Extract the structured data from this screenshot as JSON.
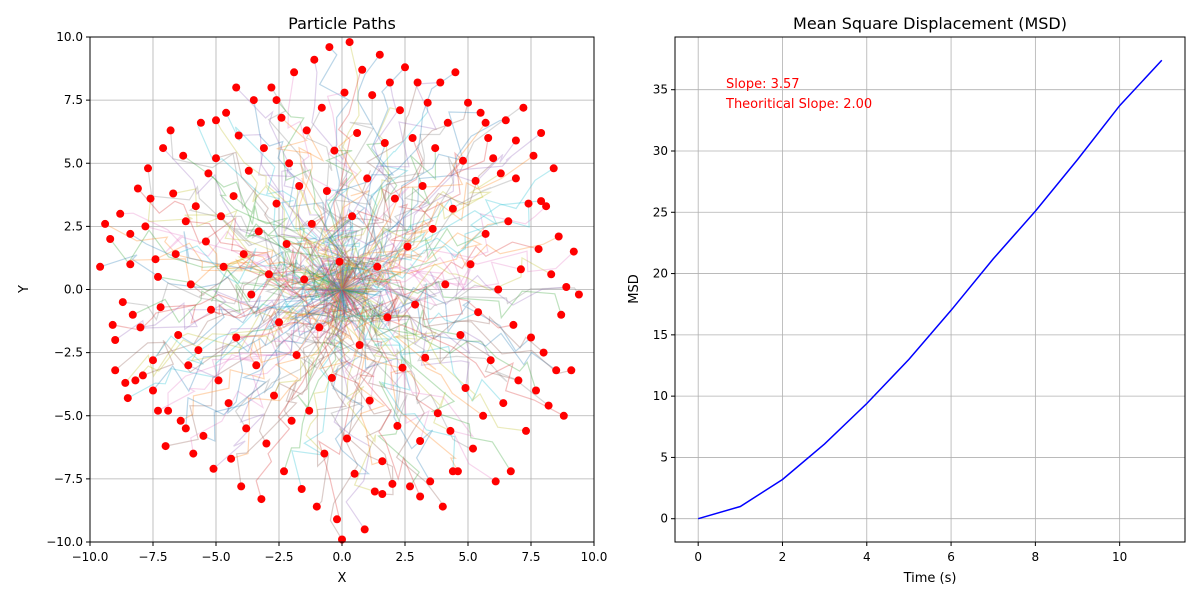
{
  "chart_data": [
    {
      "type": "scatter",
      "title": "Particle Paths",
      "xlabel": "X",
      "ylabel": "Y",
      "xlim": [
        -10,
        10
      ],
      "ylim": [
        -10,
        10
      ],
      "x_ticks": [
        "−10.0",
        "−7.5",
        "−5.0",
        "−2.5",
        "0.0",
        "2.5",
        "5.0",
        "7.5",
        "10.0"
      ],
      "x_tick_values": [
        -10,
        -7.5,
        -5,
        -2.5,
        0,
        2.5,
        5,
        7.5,
        10
      ],
      "y_ticks": [
        "−10.0",
        "−7.5",
        "−5.0",
        "−2.5",
        "0.0",
        "2.5",
        "5.0",
        "7.5",
        "10.0"
      ],
      "y_tick_values": [
        -10,
        -7.5,
        -5,
        -2.5,
        0,
        2.5,
        5,
        7.5,
        10
      ],
      "grid": true,
      "point_color": "#ff0000",
      "path_colors": [
        "#1f77b4",
        "#ff7f0e",
        "#2ca02c",
        "#d62728",
        "#9467bd",
        "#8c564b",
        "#e377c2",
        "#7f7f7f",
        "#bcbd22",
        "#17becf"
      ],
      "paths_start": [
        0,
        0
      ],
      "endpoints": [
        [
          -9.6,
          0.9
        ],
        [
          -9.4,
          2.6
        ],
        [
          -9.2,
          2.0
        ],
        [
          -9.1,
          -1.4
        ],
        [
          -9.0,
          -2.0
        ],
        [
          -9.0,
          -3.2
        ],
        [
          -8.8,
          3.0
        ],
        [
          -8.7,
          -0.5
        ],
        [
          -8.6,
          -3.7
        ],
        [
          -8.5,
          -4.3
        ],
        [
          -8.4,
          2.2
        ],
        [
          -8.4,
          1.0
        ],
        [
          -8.3,
          -1.0
        ],
        [
          -8.1,
          4.0
        ],
        [
          -8.0,
          -1.5
        ],
        [
          -7.9,
          -3.4
        ],
        [
          -7.8,
          2.5
        ],
        [
          -7.7,
          4.8
        ],
        [
          -7.6,
          3.6
        ],
        [
          -7.5,
          -2.8
        ],
        [
          -7.5,
          -4.0
        ],
        [
          -7.4,
          1.2
        ],
        [
          -7.3,
          0.5
        ],
        [
          -7.2,
          -0.7
        ],
        [
          -7.1,
          5.6
        ],
        [
          -7.0,
          -6.2
        ],
        [
          -6.9,
          -4.8
        ],
        [
          -6.8,
          6.3
        ],
        [
          -6.7,
          3.8
        ],
        [
          -6.6,
          1.4
        ],
        [
          -6.5,
          -1.8
        ],
        [
          -6.4,
          -5.2
        ],
        [
          -6.3,
          5.3
        ],
        [
          -6.2,
          2.7
        ],
        [
          -6.1,
          -3.0
        ],
        [
          -6.0,
          0.2
        ],
        [
          -5.9,
          -6.5
        ],
        [
          -5.8,
          3.3
        ],
        [
          -5.7,
          -2.4
        ],
        [
          -5.6,
          6.6
        ],
        [
          -5.5,
          -5.8
        ],
        [
          -5.4,
          1.9
        ],
        [
          -5.3,
          4.6
        ],
        [
          -5.2,
          -0.8
        ],
        [
          -5.1,
          -7.1
        ],
        [
          -5.0,
          5.2
        ],
        [
          -4.9,
          -3.6
        ],
        [
          -4.8,
          2.9
        ],
        [
          -4.7,
          0.9
        ],
        [
          -4.6,
          7.0
        ],
        [
          -4.5,
          -4.5
        ],
        [
          -4.4,
          -6.7
        ],
        [
          -4.3,
          3.7
        ],
        [
          -4.2,
          -1.9
        ],
        [
          -4.1,
          6.1
        ],
        [
          -4.0,
          -7.8
        ],
        [
          -3.9,
          1.4
        ],
        [
          -3.8,
          -5.5
        ],
        [
          -3.7,
          4.7
        ],
        [
          -3.6,
          -0.2
        ],
        [
          -3.5,
          7.5
        ],
        [
          -3.4,
          -3.0
        ],
        [
          -3.3,
          2.3
        ],
        [
          -3.2,
          -8.3
        ],
        [
          -3.1,
          5.6
        ],
        [
          -3.0,
          -6.1
        ],
        [
          -2.9,
          0.6
        ],
        [
          -2.8,
          8.0
        ],
        [
          -2.7,
          -4.2
        ],
        [
          -2.6,
          3.4
        ],
        [
          -2.5,
          -1.3
        ],
        [
          -2.4,
          6.8
        ],
        [
          -2.3,
          -7.2
        ],
        [
          -2.2,
          1.8
        ],
        [
          -2.1,
          5.0
        ],
        [
          -2.0,
          -5.2
        ],
        [
          -1.9,
          8.6
        ],
        [
          -1.8,
          -2.6
        ],
        [
          -1.7,
          4.1
        ],
        [
          -1.6,
          -7.9
        ],
        [
          -1.5,
          0.4
        ],
        [
          -1.4,
          6.3
        ],
        [
          -1.3,
          -4.8
        ],
        [
          -1.2,
          2.6
        ],
        [
          -1.1,
          9.1
        ],
        [
          -1.0,
          -8.6
        ],
        [
          -0.9,
          -1.5
        ],
        [
          -0.8,
          7.2
        ],
        [
          -0.7,
          -6.5
        ],
        [
          -0.6,
          3.9
        ],
        [
          -0.5,
          9.6
        ],
        [
          -0.4,
          -3.5
        ],
        [
          -0.3,
          5.5
        ],
        [
          -0.2,
          -9.1
        ],
        [
          -0.1,
          1.1
        ],
        [
          0.0,
          -9.9
        ],
        [
          0.1,
          7.8
        ],
        [
          0.2,
          -5.9
        ],
        [
          0.3,
          9.8
        ],
        [
          0.4,
          2.9
        ],
        [
          0.5,
          -7.3
        ],
        [
          0.6,
          6.2
        ],
        [
          0.7,
          -2.2
        ],
        [
          0.8,
          8.7
        ],
        [
          0.9,
          -9.5
        ],
        [
          1.0,
          4.4
        ],
        [
          1.1,
          -4.4
        ],
        [
          1.2,
          7.7
        ],
        [
          1.3,
          -8.0
        ],
        [
          1.4,
          0.9
        ],
        [
          1.5,
          9.3
        ],
        [
          1.6,
          -6.8
        ],
        [
          1.7,
          5.8
        ],
        [
          1.8,
          -1.1
        ],
        [
          1.9,
          8.2
        ],
        [
          2.0,
          -7.7
        ],
        [
          2.1,
          3.6
        ],
        [
          2.2,
          -5.4
        ],
        [
          2.3,
          7.1
        ],
        [
          2.4,
          -3.1
        ],
        [
          2.5,
          8.8
        ],
        [
          2.6,
          1.7
        ],
        [
          2.7,
          -7.8
        ],
        [
          2.8,
          6.0
        ],
        [
          2.9,
          -0.6
        ],
        [
          3.0,
          8.2
        ],
        [
          3.1,
          -6.0
        ],
        [
          3.2,
          4.1
        ],
        [
          3.3,
          -2.7
        ],
        [
          3.4,
          7.4
        ],
        [
          3.5,
          -7.6
        ],
        [
          3.6,
          2.4
        ],
        [
          3.7,
          5.6
        ],
        [
          3.8,
          -4.9
        ],
        [
          3.9,
          8.2
        ],
        [
          4.0,
          -8.6
        ],
        [
          4.1,
          0.2
        ],
        [
          4.2,
          6.6
        ],
        [
          4.3,
          -5.6
        ],
        [
          4.4,
          3.2
        ],
        [
          4.5,
          8.6
        ],
        [
          4.6,
          -7.2
        ],
        [
          4.7,
          -1.8
        ],
        [
          4.8,
          5.1
        ],
        [
          4.9,
          -3.9
        ],
        [
          5.0,
          7.4
        ],
        [
          5.1,
          1.0
        ],
        [
          5.2,
          -6.3
        ],
        [
          5.3,
          4.3
        ],
        [
          5.4,
          -0.9
        ],
        [
          5.5,
          7.0
        ],
        [
          5.6,
          -5.0
        ],
        [
          5.7,
          2.2
        ],
        [
          5.8,
          6.0
        ],
        [
          5.9,
          -2.8
        ],
        [
          6.0,
          5.2
        ],
        [
          6.1,
          -7.6
        ],
        [
          6.2,
          0.0
        ],
        [
          6.3,
          4.6
        ],
        [
          6.4,
          -4.5
        ],
        [
          6.5,
          6.7
        ],
        [
          6.6,
          2.7
        ],
        [
          6.7,
          -7.2
        ],
        [
          6.8,
          -1.4
        ],
        [
          6.9,
          5.9
        ],
        [
          7.0,
          -3.6
        ],
        [
          7.1,
          0.8
        ],
        [
          7.2,
          7.2
        ],
        [
          7.3,
          -5.6
        ],
        [
          7.4,
          3.4
        ],
        [
          7.5,
          -1.9
        ],
        [
          7.6,
          5.3
        ],
        [
          7.7,
          -4.0
        ],
        [
          7.8,
          1.6
        ],
        [
          7.9,
          6.2
        ],
        [
          8.0,
          -2.5
        ],
        [
          8.1,
          3.3
        ],
        [
          8.2,
          -4.6
        ],
        [
          8.3,
          0.6
        ],
        [
          8.4,
          4.8
        ],
        [
          8.5,
          -3.2
        ],
        [
          8.6,
          2.1
        ],
        [
          8.7,
          -1.0
        ],
        [
          8.8,
          -5.0
        ],
        [
          8.9,
          0.1
        ],
        [
          9.1,
          -3.2
        ],
        [
          9.2,
          1.5
        ],
        [
          9.4,
          -0.2
        ],
        [
          -8.2,
          -3.6
        ],
        [
          7.9,
          3.5
        ],
        [
          -6.2,
          -5.5
        ],
        [
          5.7,
          6.6
        ],
        [
          -2.6,
          7.5
        ],
        [
          3.1,
          -8.2
        ],
        [
          -4.2,
          8.0
        ],
        [
          1.6,
          -8.1
        ],
        [
          -7.3,
          -4.8
        ],
        [
          6.9,
          4.4
        ],
        [
          -5.0,
          6.7
        ],
        [
          4.4,
          -7.2
        ]
      ]
    },
    {
      "type": "line",
      "title": "Mean Square Displacement (MSD)",
      "xlabel": "Time (s)",
      "ylabel": "MSD",
      "xlim": [
        -0.55,
        11.55
      ],
      "ylim": [
        -1.9,
        39.3
      ],
      "x_ticks": [
        "0",
        "2",
        "4",
        "6",
        "8",
        "10"
      ],
      "x_tick_values": [
        0,
        2,
        4,
        6,
        8,
        10
      ],
      "y_ticks": [
        "0",
        "5",
        "10",
        "15",
        "20",
        "25",
        "30",
        "35"
      ],
      "y_tick_values": [
        0,
        5,
        10,
        15,
        20,
        25,
        30,
        35
      ],
      "grid": true,
      "series": [
        {
          "color": "#0000ff",
          "x": [
            0,
            1,
            2,
            3,
            4,
            5,
            6,
            7,
            8,
            9,
            10,
            11
          ],
          "y": [
            0.0,
            1.0,
            3.2,
            6.1,
            9.4,
            13.0,
            17.0,
            21.2,
            25.1,
            29.3,
            33.7,
            37.4
          ]
        }
      ],
      "annotations": [
        {
          "text": "Slope: 3.57",
          "color": "#ff0000"
        },
        {
          "text": "Theoritical Slope: 2.00",
          "color": "#ff0000"
        }
      ]
    }
  ]
}
